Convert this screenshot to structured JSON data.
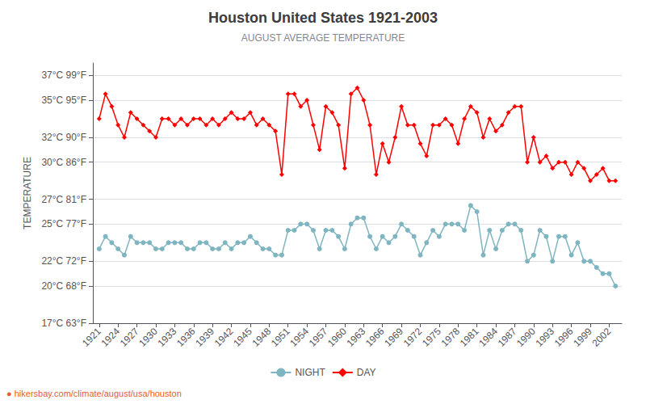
{
  "chart_data": {
    "type": "line",
    "title": "Houston United States 1921-2003",
    "subtitle": "AUGUST AVERAGE TEMPERATURE",
    "y_label": "TEMPERATURE",
    "annotations": [
      "● hikersbay.com/climate/august/usa/houston"
    ],
    "x": [
      1921,
      1922,
      1923,
      1924,
      1925,
      1926,
      1927,
      1928,
      1929,
      1930,
      1931,
      1932,
      1933,
      1934,
      1935,
      1936,
      1937,
      1938,
      1939,
      1940,
      1941,
      1942,
      1943,
      1944,
      1945,
      1946,
      1947,
      1948,
      1949,
      1950,
      1951,
      1952,
      1953,
      1954,
      1955,
      1956,
      1957,
      1958,
      1959,
      1960,
      1961,
      1962,
      1963,
      1964,
      1965,
      1966,
      1967,
      1968,
      1969,
      1970,
      1971,
      1972,
      1973,
      1974,
      1975,
      1976,
      1977,
      1978,
      1979,
      1980,
      1981,
      1982,
      1983,
      1984,
      1985,
      1986,
      1987,
      1988,
      1989,
      1990,
      1991,
      1992,
      1993,
      1994,
      1995,
      1996,
      1997,
      1998,
      1999,
      2000,
      2001,
      2002,
      2003
    ],
    "series": [
      {
        "name": "DAY",
        "color": "#ff0000",
        "marker": "diamond",
        "values": [
          33.5,
          35.5,
          34.5,
          33.0,
          32.0,
          34.0,
          33.5,
          33.0,
          32.5,
          32.0,
          33.5,
          33.5,
          33.0,
          33.5,
          33.0,
          33.5,
          33.5,
          33.0,
          33.5,
          33.0,
          33.5,
          34.0,
          33.5,
          33.5,
          34.0,
          33.0,
          33.5,
          33.0,
          32.5,
          29.0,
          35.5,
          35.5,
          34.5,
          35.0,
          33.0,
          31.0,
          34.5,
          34.0,
          33.0,
          29.5,
          35.5,
          36.0,
          35.0,
          33.0,
          29.0,
          31.5,
          30.0,
          32.0,
          34.5,
          33.0,
          33.0,
          31.5,
          30.5,
          33.0,
          33.0,
          33.5,
          33.0,
          31.5,
          33.5,
          34.5,
          34.0,
          32.0,
          33.5,
          32.5,
          33.0,
          34.0,
          34.5,
          34.5,
          30.0,
          32.0,
          30.0,
          30.5,
          29.5,
          30.0,
          30.0,
          29.0,
          30.0,
          29.5,
          28.5,
          29.0,
          29.5,
          28.5,
          28.5
        ]
      },
      {
        "name": "NIGHT",
        "color": "#7eb5c0",
        "marker": "circle",
        "values": [
          23.0,
          24.0,
          23.5,
          23.0,
          22.5,
          24.0,
          23.5,
          23.5,
          23.5,
          23.0,
          23.0,
          23.5,
          23.5,
          23.5,
          23.0,
          23.0,
          23.5,
          23.5,
          23.0,
          23.0,
          23.5,
          23.0,
          23.5,
          23.5,
          24.0,
          23.5,
          23.0,
          23.0,
          22.5,
          22.5,
          24.5,
          24.5,
          25.0,
          25.0,
          24.5,
          23.0,
          24.5,
          24.5,
          24.0,
          23.0,
          25.0,
          25.5,
          25.5,
          24.0,
          23.0,
          24.0,
          23.5,
          24.0,
          25.0,
          24.5,
          24.0,
          22.5,
          23.5,
          24.5,
          24.0,
          25.0,
          25.0,
          25.0,
          24.5,
          26.5,
          26.0,
          22.5,
          24.5,
          23.0,
          24.5,
          25.0,
          25.0,
          24.5,
          22.0,
          22.5,
          24.5,
          24.0,
          22.0,
          24.0,
          24.0,
          22.5,
          23.5,
          22.0,
          22.0,
          21.5,
          21.0,
          21.0,
          20.0
        ]
      }
    ],
    "xlim": [
      1920,
      2004
    ],
    "xticks": [
      1921,
      1924,
      1927,
      1930,
      1933,
      1936,
      1939,
      1942,
      1945,
      1948,
      1951,
      1954,
      1957,
      1960,
      1963,
      1966,
      1969,
      1972,
      1975,
      1978,
      1981,
      1984,
      1987,
      1990,
      1993,
      1996,
      1999,
      2002
    ],
    "ylim": [
      17,
      38
    ],
    "yticks": [
      {
        "value": 17,
        "label": "17°C 63°F"
      },
      {
        "value": 20,
        "label": "20°C 68°F"
      },
      {
        "value": 22,
        "label": "22°C 72°F"
      },
      {
        "value": 25,
        "label": "25°C 77°F"
      },
      {
        "value": 27,
        "label": "27°C 81°F"
      },
      {
        "value": 30,
        "label": "30°C 86°F"
      },
      {
        "value": 32,
        "label": "32°C 90°F"
      },
      {
        "value": 35,
        "label": "35°C 95°F"
      },
      {
        "value": 37,
        "label": "37°C 99°F"
      }
    ],
    "grid": true,
    "legend": "bottom"
  }
}
